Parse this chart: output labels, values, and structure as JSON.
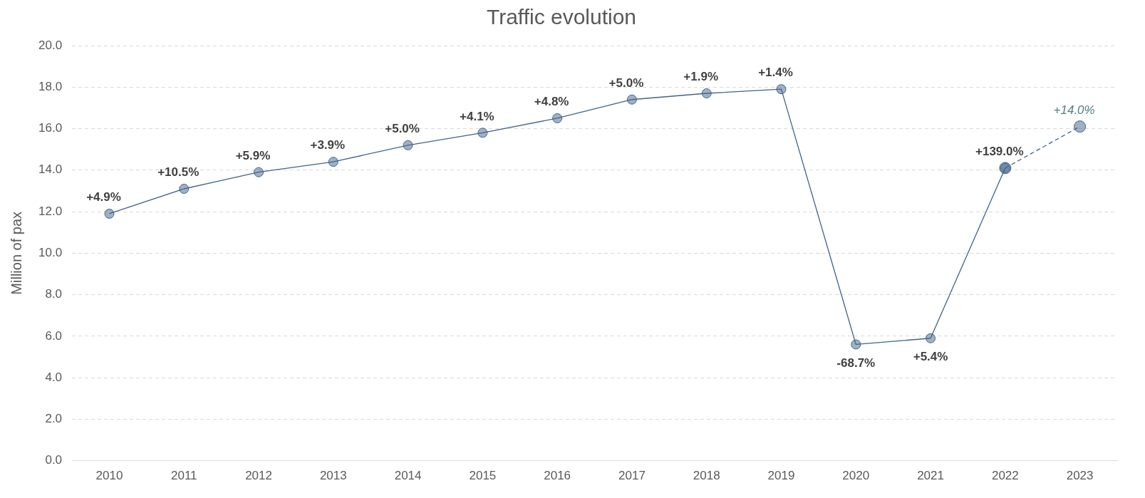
{
  "chart_data": {
    "type": "line",
    "title": "Traffic evolution",
    "ylabel": "Million of pax",
    "categories": [
      "2010",
      "2011",
      "2012",
      "2013",
      "2014",
      "2015",
      "2016",
      "2017",
      "2018",
      "2019",
      "2020",
      "2021",
      "2022",
      "2023"
    ],
    "series": [
      {
        "color": "#41648a",
        "line_style": "solid",
        "values": [
          11.9,
          13.1,
          13.9,
          14.4,
          15.2,
          15.8,
          16.5,
          17.4,
          17.7,
          17.9,
          5.6,
          5.9,
          14.1,
          null
        ]
      },
      {
        "color": "#41648a",
        "line_style": "dashed",
        "values": [
          null,
          null,
          null,
          null,
          null,
          null,
          null,
          null,
          null,
          null,
          null,
          null,
          14.1,
          16.1
        ]
      }
    ],
    "annotations": [
      {
        "text": "+4.9%",
        "x": "2010",
        "y": 11.9
      },
      {
        "text": "+10.5%",
        "x": "2011",
        "y": 13.1
      },
      {
        "text": "+5.9%",
        "x": "2012",
        "y": 13.9
      },
      {
        "text": "+3.9%",
        "x": "2013",
        "y": 14.4
      },
      {
        "text": "+5.0%",
        "x": "2014",
        "y": 15.2
      },
      {
        "text": "+4.1%",
        "x": "2015",
        "y": 15.8
      },
      {
        "text": "+4.8%",
        "x": "2016",
        "y": 16.5
      },
      {
        "text": "+5.0%",
        "x": "2017",
        "y": 17.4
      },
      {
        "text": "+1.9%",
        "x": "2018",
        "y": 17.7
      },
      {
        "text": "+1.4%",
        "x": "2019",
        "y": 17.9
      },
      {
        "text": "-68.7%",
        "x": "2020",
        "y": 5.6
      },
      {
        "text": "+5.4%",
        "x": "2021",
        "y": 5.9
      },
      {
        "text": "+139.0%",
        "x": "2022",
        "y": 14.1
      },
      {
        "text": "+14.0%",
        "x": "2023",
        "y": 16.1
      }
    ],
    "marker": "circle",
    "ylim": [
      0,
      20
    ],
    "yticks": [
      {
        "value": 0,
        "label": "0.0"
      },
      {
        "value": 2,
        "label": "2.0"
      },
      {
        "value": 4,
        "label": "4.0"
      },
      {
        "value": 6,
        "label": "6.0"
      },
      {
        "value": 8,
        "label": "8.0"
      },
      {
        "value": 10,
        "label": "10.0"
      },
      {
        "value": 12,
        "label": "12.0"
      },
      {
        "value": 14,
        "label": "14.0"
      },
      {
        "value": 16,
        "label": "16.0"
      },
      {
        "value": 18,
        "label": "18.0"
      },
      {
        "value": 20,
        "label": "20.0"
      }
    ],
    "grid": "y",
    "legend": false
  }
}
